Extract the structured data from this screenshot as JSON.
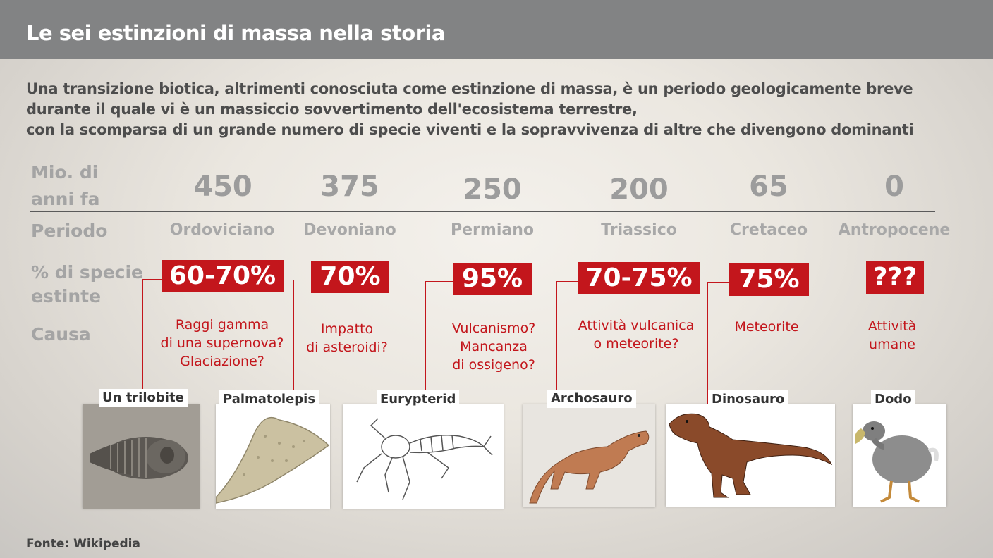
{
  "title": "Le sei estinzioni di massa nella storia",
  "intro": [
    "Una transizione biotica, altrimenti conosciuta come  estinzione di massa, è un periodo geologicamente breve",
    "durante il quale vi è un massiccio sovvertimento dell'ecosistema terrestre,",
    "con la scomparsa di un grande numero di specie viventi e la sopravvivenza di altre che divengono dominanti"
  ],
  "row_labels": {
    "years_1": "Mio. di",
    "years_2": "anni fa",
    "period": "Periodo",
    "pct_1": "% di specie",
    "pct_2": "estinte",
    "cause": "Causa"
  },
  "extinctions": [
    {
      "years": "450",
      "period": "Ordoviciano",
      "pct": "60-70%",
      "cause": [
        "Raggi gamma",
        "di una supernova?",
        "Glaciazione?"
      ],
      "caption": "Un trilobite"
    },
    {
      "years": "375",
      "period": "Devoniano",
      "pct": "70%",
      "cause": [
        "Impatto",
        "di asteroidi?"
      ],
      "caption": "Palmatolepis"
    },
    {
      "years": "250",
      "period": "Permiano",
      "pct": "95%",
      "cause": [
        "Vulcanismo?",
        "Mancanza",
        "di ossigeno?"
      ],
      "caption": "Eurypterid"
    },
    {
      "years": "200",
      "period": "Triassico",
      "pct": "70-75%",
      "cause": [
        "Attività vulcanica",
        "o meteorite?"
      ],
      "caption": "Archosauro"
    },
    {
      "years": "65",
      "period": "Cretaceo",
      "pct": "75%",
      "cause": [
        "Meteorite"
      ],
      "caption": "Dinosauro"
    },
    {
      "years": "0",
      "period": "Antropocene",
      "pct": "???",
      "cause": [
        "Attività",
        "umane"
      ],
      "caption": "Dodo"
    }
  ],
  "source": "Fonte: Wikipedia",
  "colors": {
    "header": "#828384",
    "accent": "#c3161c",
    "muted": "#a4a4a4"
  }
}
